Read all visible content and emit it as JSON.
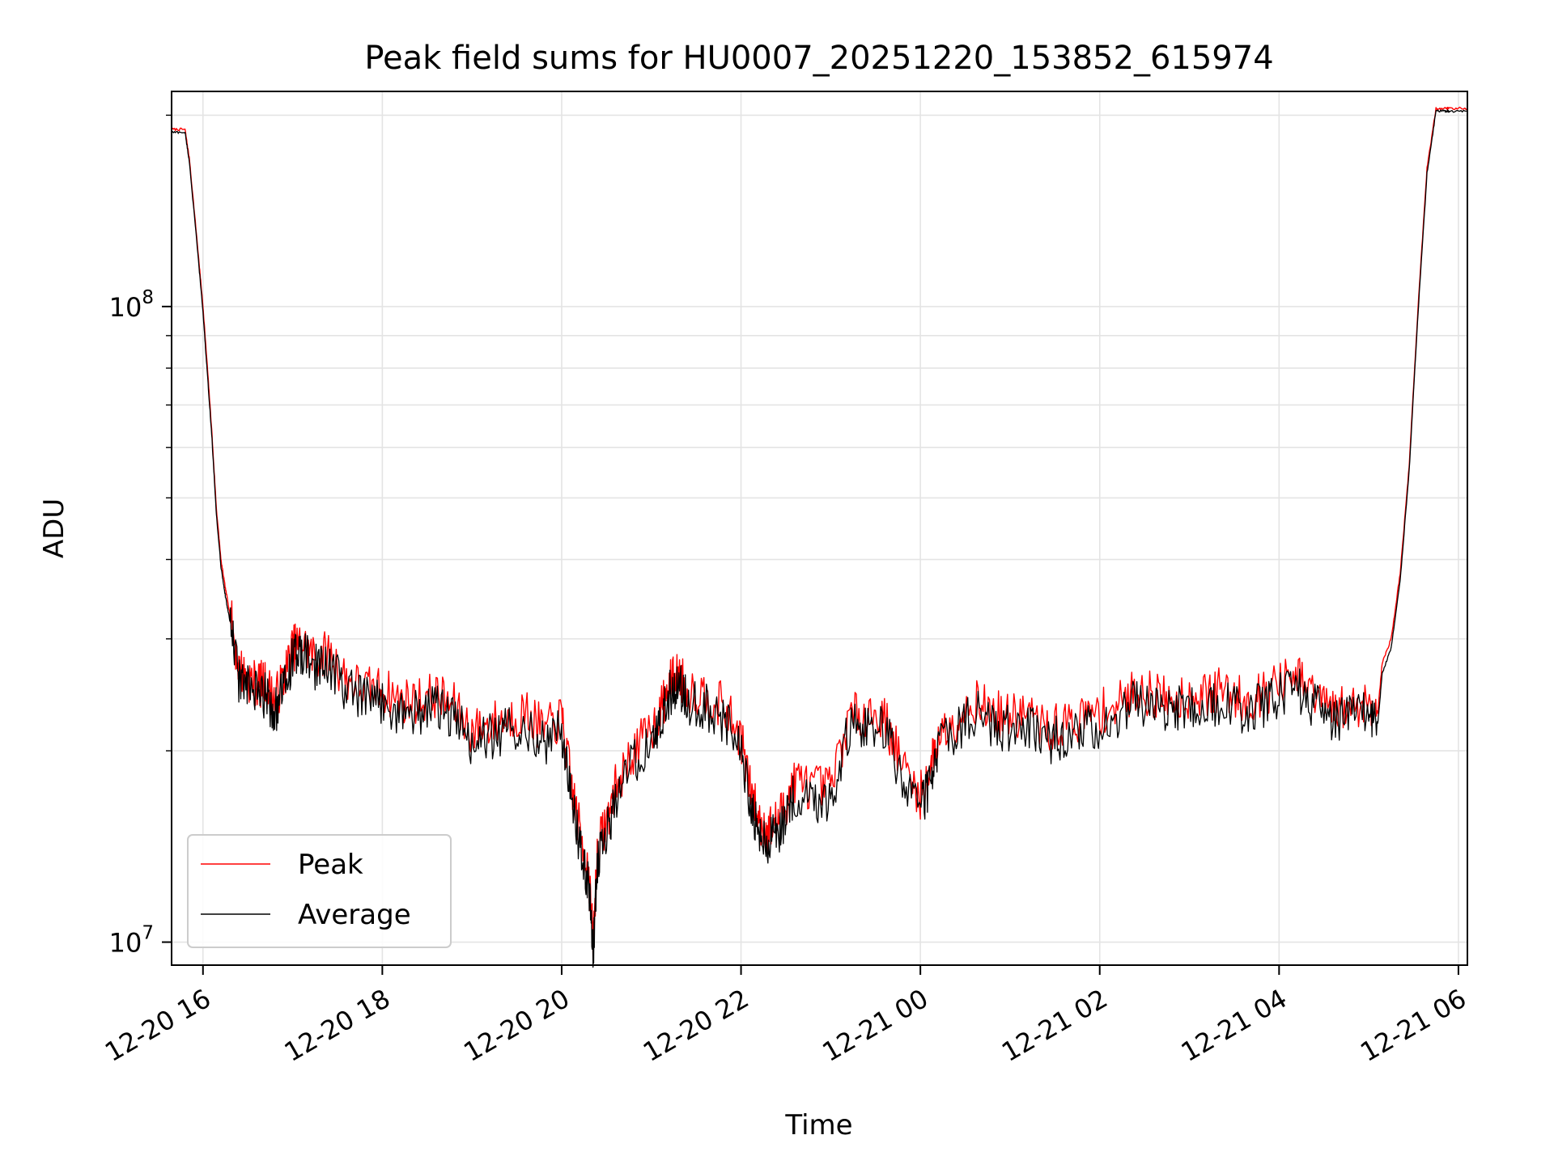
{
  "chart_data": {
    "type": "line",
    "title": "Peak field sums for HU0007_20251220_153852_615974",
    "xlabel": "Time",
    "ylabel": "ADU",
    "yscale": "log",
    "ylim": [
      9200000,
      218000000
    ],
    "xlim_hours": [
      15.65,
      30.1
    ],
    "grid": true,
    "legend_position": "lower-left",
    "x_ticks": [
      {
        "hour": 16,
        "label": "12-20 16"
      },
      {
        "hour": 18,
        "label": "12-20 18"
      },
      {
        "hour": 20,
        "label": "12-20 20"
      },
      {
        "hour": 22,
        "label": "12-20 22"
      },
      {
        "hour": 24,
        "label": "12-21 00"
      },
      {
        "hour": 26,
        "label": "12-21 02"
      },
      {
        "hour": 28,
        "label": "12-21 04"
      },
      {
        "hour": 30,
        "label": "12-21 06"
      }
    ],
    "y_major_ticks": [
      {
        "value": 10000000,
        "base": "10",
        "exp": "7"
      },
      {
        "value": 100000000,
        "base": "10",
        "exp": "8"
      }
    ],
    "series": [
      {
        "name": "Peak",
        "color": "#ff0000",
        "hours": [
          15.65,
          15.8,
          15.85,
          15.95,
          16.0,
          16.05,
          16.1,
          16.15,
          16.2,
          16.25,
          16.3,
          16.4,
          16.5,
          16.6,
          16.7,
          16.8,
          16.9,
          17.0,
          17.1,
          17.25,
          17.4,
          17.6,
          17.8,
          18.0,
          18.2,
          18.4,
          18.6,
          18.8,
          19.0,
          19.2,
          19.4,
          19.6,
          19.8,
          20.0,
          20.1,
          20.2,
          20.3,
          20.35,
          20.4,
          20.5,
          20.6,
          20.8,
          21.0,
          21.1,
          21.2,
          21.3,
          21.4,
          21.6,
          21.8,
          22.0,
          22.1,
          22.2,
          22.3,
          22.4,
          22.5,
          22.6,
          22.8,
          23.0,
          23.2,
          23.4,
          23.6,
          23.8,
          24.0,
          24.1,
          24.2,
          24.4,
          24.6,
          24.8,
          25.0,
          25.2,
          25.4,
          25.6,
          25.8,
          26.0,
          26.2,
          26.4,
          26.6,
          26.8,
          27.0,
          27.2,
          27.4,
          27.6,
          27.8,
          28.0,
          28.2,
          28.4,
          28.6,
          28.8,
          29.0,
          29.1,
          29.15,
          29.25,
          29.35,
          29.45,
          29.55,
          29.65,
          29.75,
          29.85,
          29.9,
          30.1
        ],
        "values": [
          190000000,
          190000000,
          170000000,
          120000000,
          100000000,
          80000000,
          63000000,
          48000000,
          40000000,
          36000000,
          33000000,
          27000000,
          26000000,
          25500000,
          25500000,
          24000000,
          26000000,
          29000000,
          29500000,
          28000000,
          28500000,
          26000000,
          25000000,
          25000000,
          24000000,
          24000000,
          24500000,
          23500000,
          21500000,
          22000000,
          22500000,
          23000000,
          21500000,
          22500000,
          18000000,
          15000000,
          13000000,
          10000000,
          14000000,
          15500000,
          17500000,
          20000000,
          21500000,
          23000000,
          25500000,
          26500000,
          25000000,
          24500000,
          23500000,
          21000000,
          17500000,
          15500000,
          15000000,
          15500000,
          16500000,
          18000000,
          17500000,
          17500000,
          22500000,
          23000000,
          22500000,
          19000000,
          17000000,
          18500000,
          21000000,
          22500000,
          24000000,
          23000000,
          22500000,
          23000000,
          21500000,
          22000000,
          22500000,
          23000000,
          23500000,
          25000000,
          24500000,
          24000000,
          24500000,
          24500000,
          25000000,
          24000000,
          24500000,
          25500000,
          26000000,
          24500000,
          23000000,
          23500000,
          24000000,
          23000000,
          27500000,
          30000000,
          38000000,
          56000000,
          100000000,
          165000000,
          205000000,
          205000000,
          205000000,
          205000000
        ]
      },
      {
        "name": "Average",
        "color": "#000000",
        "hours": [
          15.65,
          15.8,
          15.85,
          15.95,
          16.0,
          16.05,
          16.1,
          16.15,
          16.2,
          16.25,
          16.3,
          16.4,
          16.5,
          16.6,
          16.7,
          16.8,
          16.9,
          17.0,
          17.1,
          17.25,
          17.4,
          17.6,
          17.8,
          18.0,
          18.2,
          18.4,
          18.6,
          18.8,
          19.0,
          19.2,
          19.4,
          19.6,
          19.8,
          20.0,
          20.1,
          20.2,
          20.3,
          20.35,
          20.4,
          20.5,
          20.6,
          20.8,
          21.0,
          21.1,
          21.2,
          21.3,
          21.4,
          21.6,
          21.8,
          22.0,
          22.1,
          22.2,
          22.3,
          22.4,
          22.5,
          22.6,
          22.8,
          23.0,
          23.2,
          23.4,
          23.6,
          23.8,
          24.0,
          24.1,
          24.2,
          24.4,
          24.6,
          24.8,
          25.0,
          25.2,
          25.4,
          25.6,
          25.8,
          26.0,
          26.2,
          26.4,
          26.6,
          26.8,
          27.0,
          27.2,
          27.4,
          27.6,
          27.8,
          28.0,
          28.2,
          28.4,
          28.6,
          28.8,
          29.0,
          29.1,
          29.15,
          29.25,
          29.35,
          29.45,
          29.55,
          29.65,
          29.75,
          29.85,
          29.9,
          30.1
        ],
        "values": [
          188000000,
          188000000,
          168000000,
          118000000,
          98000000,
          78000000,
          62000000,
          47000000,
          39000000,
          35000000,
          32000000,
          26000000,
          25000000,
          24500000,
          24500000,
          23000000,
          25000000,
          28000000,
          28500000,
          27000000,
          27500000,
          25000000,
          24000000,
          24000000,
          23000000,
          23000000,
          23500000,
          22500000,
          20500000,
          21000000,
          21500000,
          22000000,
          20500000,
          21500000,
          17200000,
          14300000,
          12400000,
          9600000,
          13400000,
          14800000,
          16800000,
          19200000,
          20600000,
          22000000,
          24500000,
          25500000,
          24000000,
          23500000,
          22500000,
          20100000,
          16800000,
          14800000,
          14300000,
          14800000,
          15800000,
          17200000,
          16800000,
          16800000,
          21600000,
          22000000,
          21600000,
          18200000,
          16300000,
          17700000,
          20100000,
          21600000,
          23000000,
          22000000,
          21600000,
          22000000,
          20600000,
          21100000,
          21600000,
          22000000,
          22500000,
          24000000,
          23500000,
          23000000,
          23500000,
          23500000,
          24000000,
          23000000,
          23500000,
          24500000,
          25000000,
          23500000,
          22000000,
          22500000,
          23000000,
          22000000,
          26500000,
          29000000,
          37000000,
          55000000,
          98000000,
          162000000,
          203000000,
          203000000,
          203000000,
          203000000
        ]
      }
    ]
  }
}
